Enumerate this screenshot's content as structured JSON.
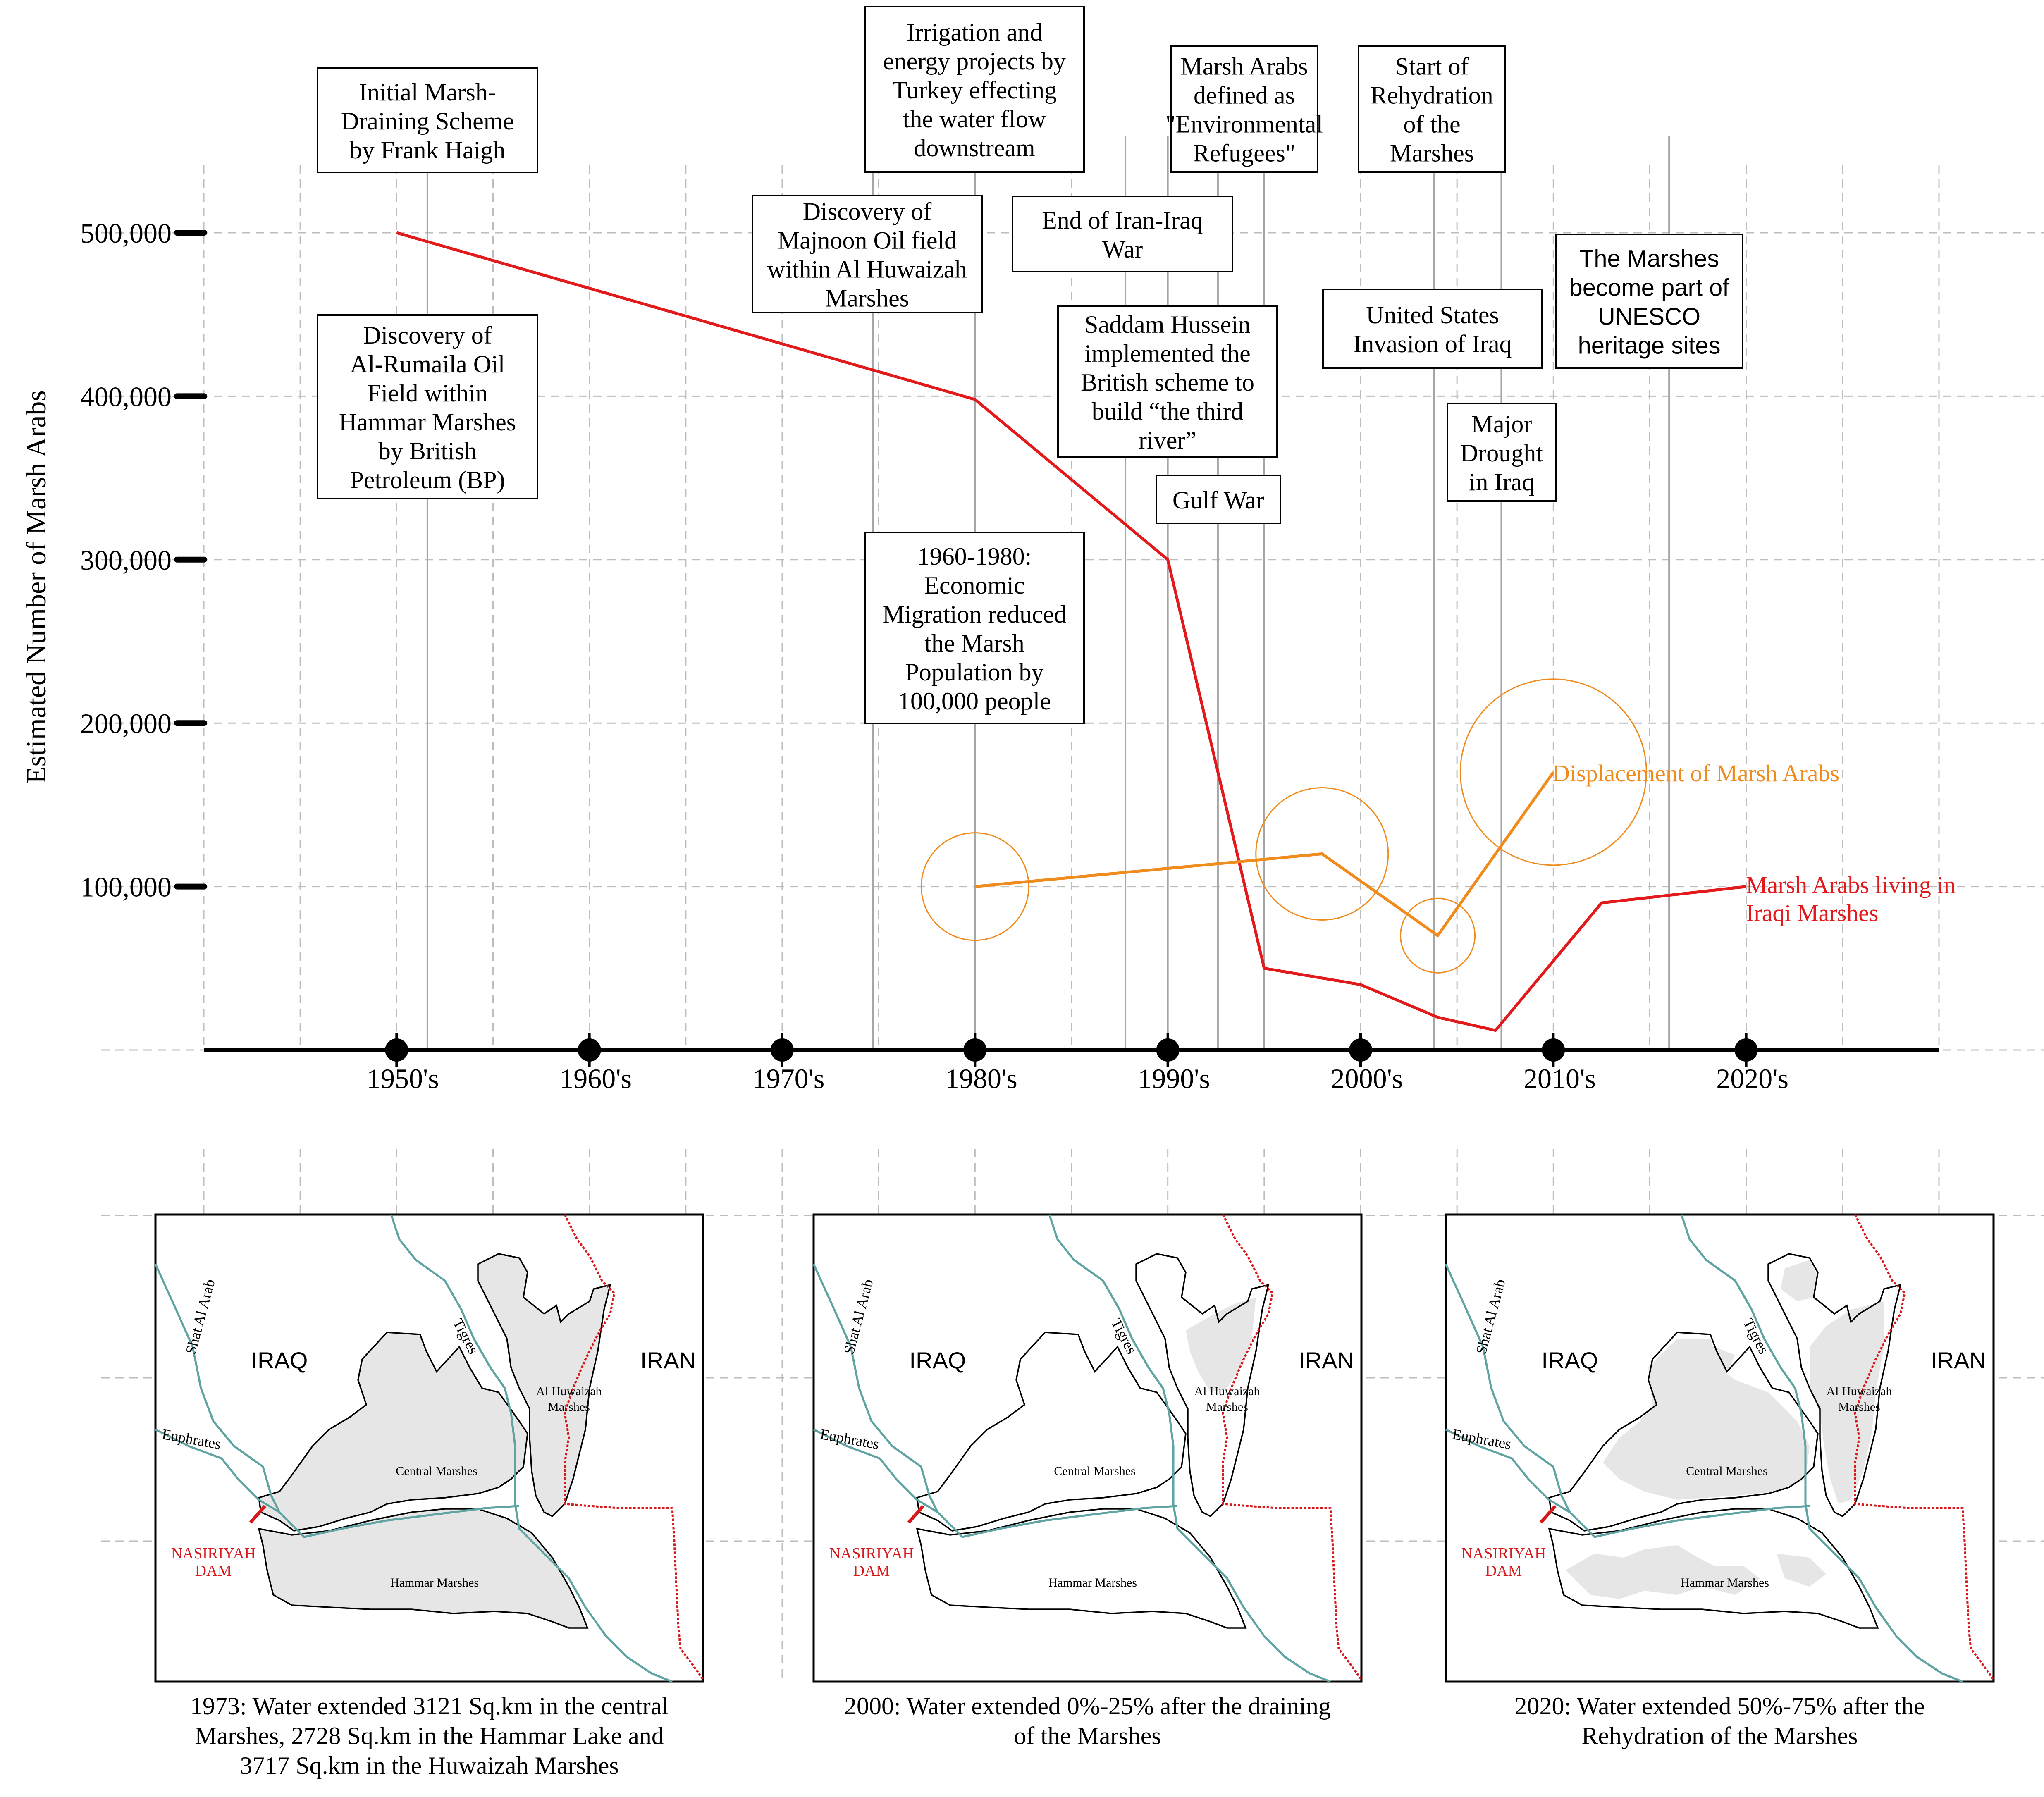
{
  "chart_data": {
    "type": "line",
    "ylabel": "Estimated Number of Marsh Arabs",
    "xlabel": "",
    "x_ticks": [
      "1950's",
      "1960's",
      "1970's",
      "1980's",
      "1990's",
      "2000's",
      "2010's",
      "2020's"
    ],
    "x_tick_years": [
      1950,
      1960,
      1970,
      1980,
      1990,
      2000,
      2010,
      2020
    ],
    "xlim": [
      1940,
      2030
    ],
    "y_ticks": [
      "100,000",
      "200,000",
      "300,000",
      "400,000",
      "500,000"
    ],
    "y_tick_values": [
      100000,
      200000,
      300000,
      400000,
      500000
    ],
    "ylim": [
      0,
      500000
    ],
    "grid": true,
    "series": [
      {
        "name": "Marsh Arabs living in Iraqi Marshes",
        "color": "#e31a1c",
        "x": [
          1950,
          1980,
          1990,
          1995,
          2000,
          2004,
          2007,
          2012.5,
          2020
        ],
        "y": [
          500000,
          398000,
          300000,
          50000,
          40000,
          20000,
          12000,
          90000,
          100000
        ]
      },
      {
        "name": "Displacement of Marsh Arabs",
        "color": "#f08c1e",
        "x": [
          1980,
          1998,
          2004,
          2010
        ],
        "y": [
          100000,
          120000,
          70000,
          170000
        ],
        "bubbles": [
          {
            "x": 1980,
            "y": 100000
          },
          {
            "x": 1998,
            "y": 120000
          },
          {
            "x": 2004,
            "y": 70000
          },
          {
            "x": 2010,
            "y": 170000
          }
        ]
      }
    ],
    "events": [
      {
        "year": 1951.6,
        "label_lines": [
          "Initial Marsh-",
          "Draining Scheme",
          "by Frank Haigh"
        ],
        "font": "serif"
      },
      {
        "year": 1951.6,
        "label_lines": [
          "Discovery of",
          "Al-Rumaila Oil",
          "Field within",
          "Hammar Marshes",
          "by British",
          "Petroleum (BP)"
        ],
        "font": "serif"
      },
      {
        "year": 1974.7,
        "label_lines": [
          "Discovery of",
          "Majnoon Oil field",
          "within Al Huwaizah",
          "Marshes"
        ],
        "font": "serif"
      },
      {
        "year": 1980,
        "label_lines": [
          "Irrigation and",
          "energy projects by",
          "Turkey effecting",
          "the water flow",
          "downstream"
        ],
        "font": "serif"
      },
      {
        "year": 1980,
        "label_lines": [
          "1960-1980:",
          "Economic",
          "Migration reduced",
          "the Marsh",
          "Population by",
          "100,000 people"
        ],
        "font": "serif"
      },
      {
        "year": 1987.8,
        "label_lines": [
          "End of Iran-Iraq",
          "War"
        ],
        "font": "serif"
      },
      {
        "year": 1990,
        "label_lines": [
          "Saddam Hussein",
          "implemented the",
          "British scheme to",
          "build “the third",
          "river”"
        ],
        "font": "serif"
      },
      {
        "year": 1992.6,
        "label_lines": [
          "Gulf War"
        ],
        "font": "serif"
      },
      {
        "year": 1995,
        "label_lines": [
          "Marsh Arabs",
          "defined as",
          "\"Environmental",
          "Refugees\""
        ],
        "font": "serif"
      },
      {
        "year": 2003.8,
        "label_lines": [
          "Start of",
          "Rehydration",
          "of the",
          "Marshes"
        ],
        "font": "serif"
      },
      {
        "year": 2003.8,
        "label_lines": [
          "United States",
          "Invasion of Iraq"
        ],
        "font": "serif"
      },
      {
        "year": 2007.3,
        "label_lines": [
          "Major",
          "Drought",
          "in Iraq"
        ],
        "font": "serif"
      },
      {
        "year": 2016,
        "label_lines": [
          "The Marshes",
          "become part of",
          "UNESCO",
          "heritage sites"
        ],
        "font": "sans"
      }
    ]
  },
  "maps": [
    {
      "caption_lines": [
        "1973: Water extended 3121 Sq.km in the central",
        "Marshes, 2728 Sq.km in the Hammar Lake and",
        "3717 Sq.km in the Huwaizah Marshes"
      ],
      "water": "full"
    },
    {
      "caption_lines": [
        "2000: Water extended 0%-25% after the draining",
        "of the Marshes"
      ],
      "water": "drained"
    },
    {
      "caption_lines": [
        "2020: Water extended 50%-75% after the",
        "Rehydration of the Marshes"
      ],
      "water": "partial"
    }
  ],
  "map_labels": {
    "iraq": "IRAQ",
    "iran": "IRAN",
    "shat_al_arab": "Shat Al Arab",
    "tigres": "Tigres",
    "euphrates": "Euphrates",
    "al_huwaizah": [
      "Al Huwaizah",
      "Marshes"
    ],
    "central": "Central Marshes",
    "hammar": "Hammar Marshes",
    "dam": [
      "NASIRIYAH",
      "DAM"
    ]
  },
  "colors": {
    "population_line": "#e31a1c",
    "displacement_line": "#f08c1e",
    "marsh_fill": "#e6e6e6",
    "river": "#5fa3a3",
    "border": "#d7191c",
    "grid": "#bdbdbd",
    "event_line": "#a6a6a6"
  }
}
